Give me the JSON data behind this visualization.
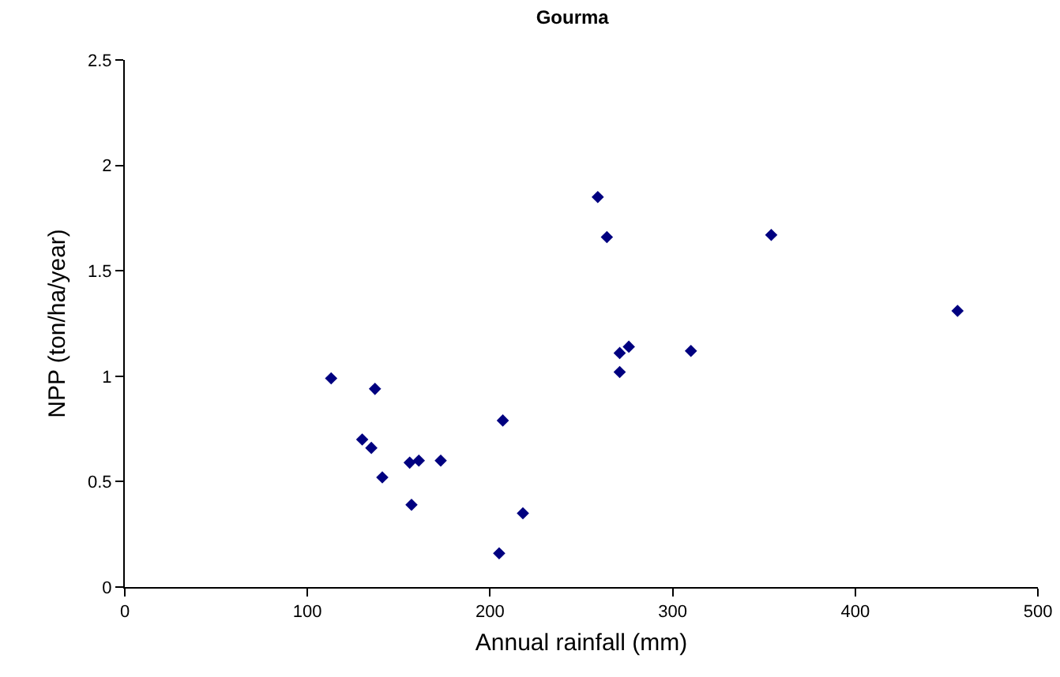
{
  "chart_data": {
    "type": "scatter",
    "title": "Gourma",
    "xlabel": "Annual rainfall (mm)",
    "ylabel": "NPP (ton/ha/year)",
    "x": [
      113,
      130,
      135,
      137,
      141,
      156,
      161,
      157,
      173,
      207,
      205,
      218,
      259,
      264,
      271,
      276,
      271,
      310,
      354,
      456
    ],
    "series": [
      {
        "color": "#000080",
        "values": [
          0.99,
          0.7,
          0.66,
          0.94,
          0.52,
          0.59,
          0.6,
          0.39,
          0.6,
          0.79,
          0.16,
          0.35,
          1.85,
          1.66,
          1.11,
          1.14,
          1.02,
          1.12,
          1.67,
          1.31
        ]
      }
    ],
    "xlim": [
      0,
      500
    ],
    "xticks": [
      0,
      100,
      200,
      300,
      400,
      500
    ],
    "ylim": [
      0,
      2.5
    ],
    "yticks": [
      0,
      0.5,
      1,
      1.5,
      2,
      2.5
    ],
    "marker": "diamond"
  }
}
